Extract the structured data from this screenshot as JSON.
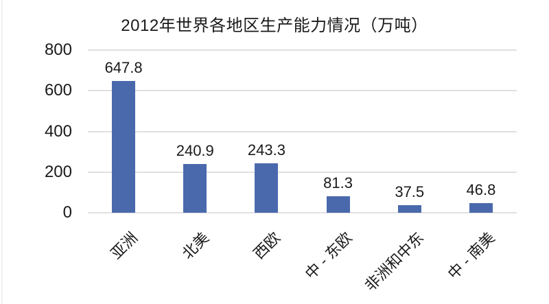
{
  "chart_data": {
    "type": "bar",
    "title": "2012年世界各地区生产能力情况（万吨）",
    "categories": [
      "亚洲",
      "北美",
      "西欧",
      "中 - 东欧",
      "非洲和中东",
      "中 - 南美"
    ],
    "values": [
      647.8,
      240.9,
      243.3,
      81.3,
      37.5,
      46.8
    ],
    "data_labels": [
      "647.8",
      "240.9",
      "243.3",
      "81.3",
      "37.5",
      "46.8"
    ],
    "xlabel": "",
    "ylabel": "",
    "ylim": [
      0,
      800
    ],
    "yticks": [
      0,
      200,
      400,
      600,
      800
    ],
    "grid": "horizontal",
    "legend_position": "none",
    "bar_color": "#4a69ad",
    "gridline_color": "#e0e0e0",
    "text_color": "#1a1a1a",
    "background_color": "#ffffff"
  }
}
